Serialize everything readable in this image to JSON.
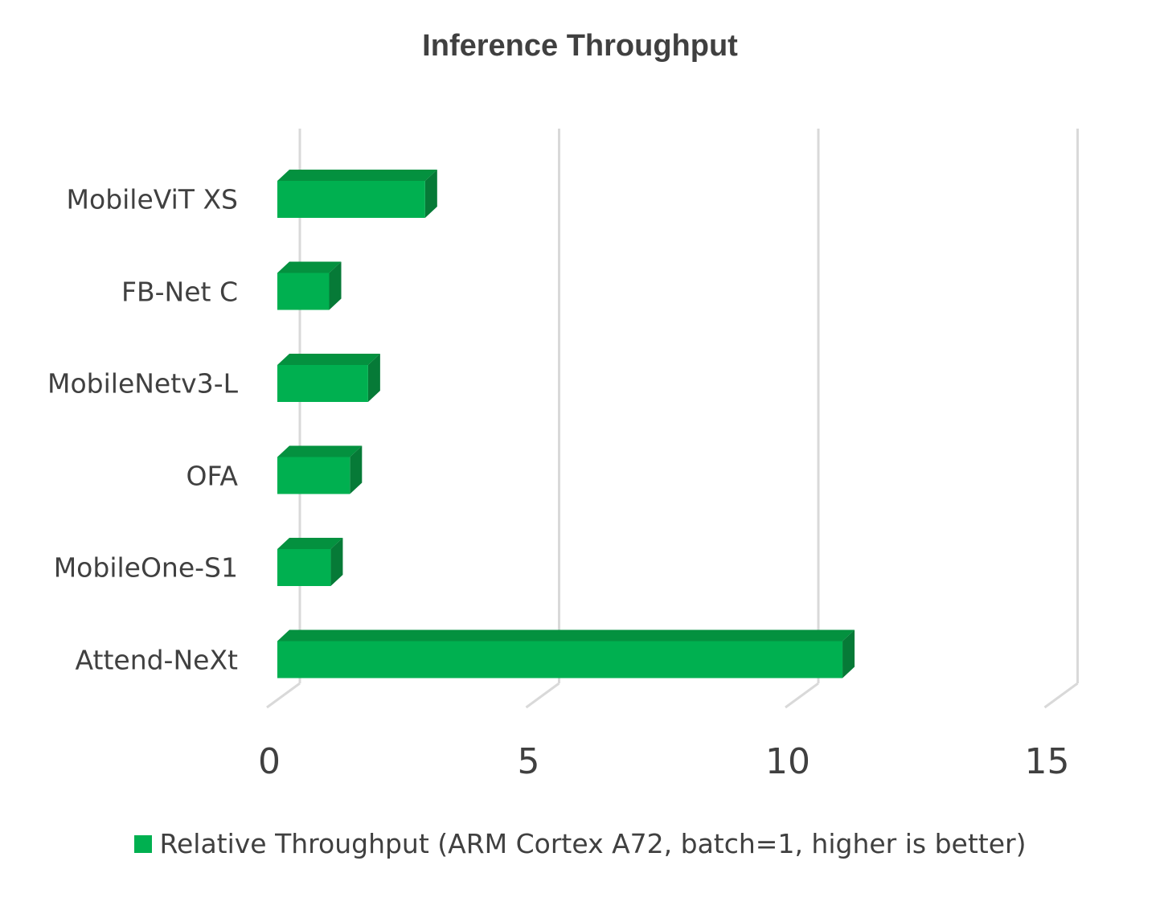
{
  "chart_data": {
    "type": "bar",
    "orientation": "horizontal",
    "style": "3d",
    "title": "Inference Throughput",
    "categories": [
      "MobileViT XS",
      "FB-Net C",
      "MobileNetv3-L",
      "OFA",
      "MobileOne-S1",
      "Attend-NeXt"
    ],
    "series": [
      {
        "name": "Relative Throughput (ARM Cortex A72, batch=1, higher is better)",
        "values": [
          2.85,
          1.0,
          1.75,
          1.4,
          1.03,
          10.9
        ],
        "color": "#00b050"
      }
    ],
    "xlim": [
      0,
      15
    ],
    "x_ticks": [
      "0",
      "5",
      "10",
      "15"
    ],
    "grid": true,
    "legend_position": "bottom"
  }
}
